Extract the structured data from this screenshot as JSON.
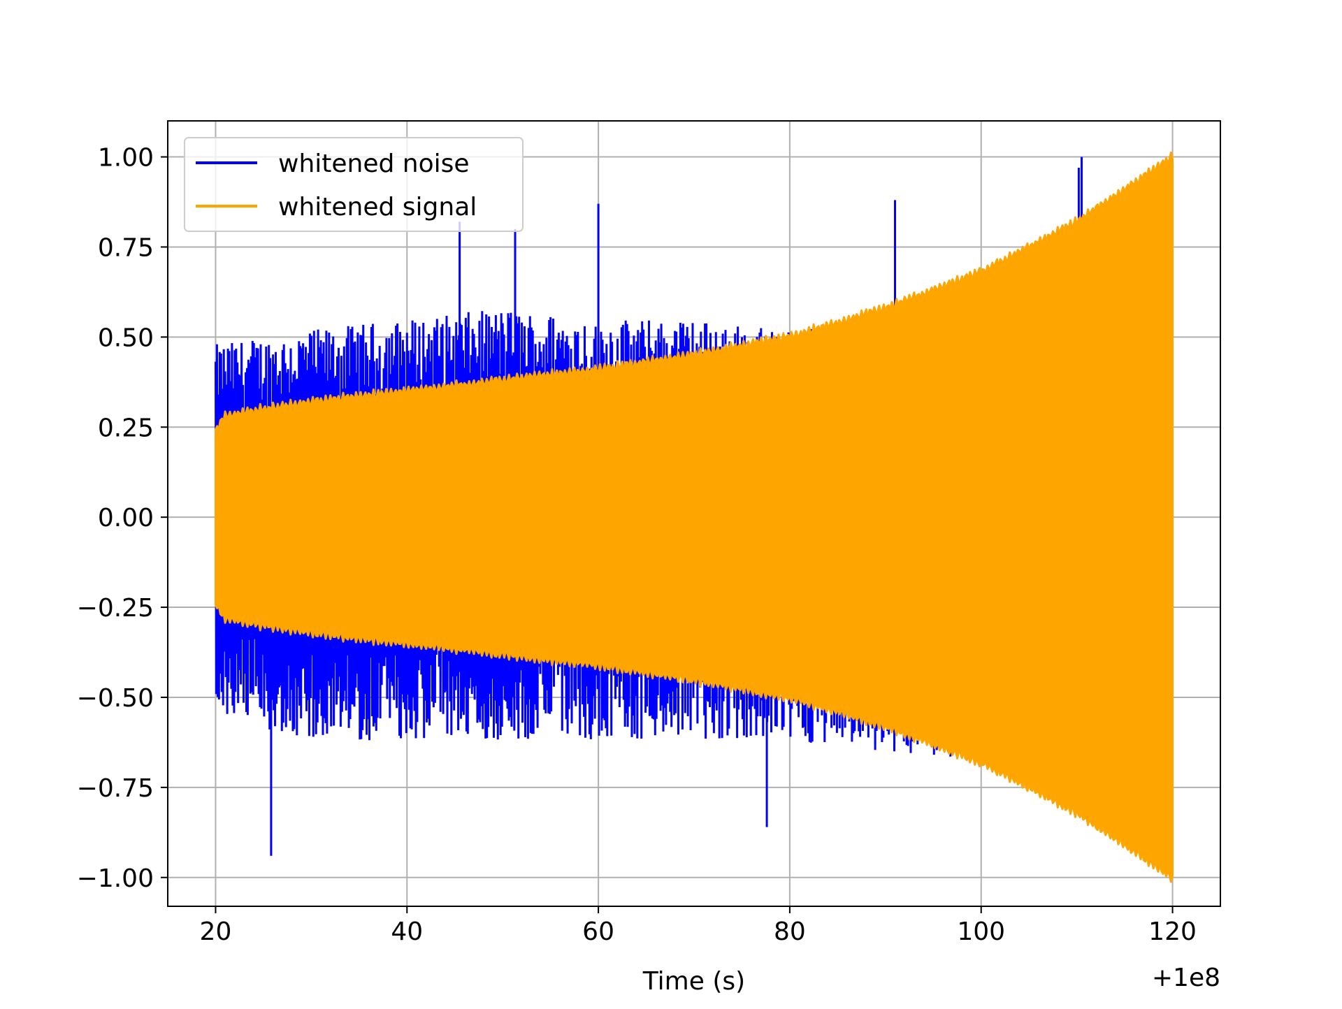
{
  "chart_data": {
    "type": "line",
    "title": "",
    "xlabel": "Time (s)",
    "ylabel": "",
    "x_offset_label": "+1e8",
    "xlim": [
      15,
      125
    ],
    "ylim": [
      -1.08,
      1.1
    ],
    "x_ticks": [
      20,
      40,
      60,
      80,
      100,
      120
    ],
    "x_tick_labels": [
      "20",
      "40",
      "60",
      "80",
      "100",
      "120"
    ],
    "y_ticks": [
      1.0,
      0.75,
      0.5,
      0.25,
      0.0,
      -0.25,
      -0.5,
      -0.75,
      -1.0
    ],
    "y_tick_labels": [
      "1.00",
      "0.75",
      "0.50",
      "0.25",
      "0.00",
      "−0.25",
      "−0.50",
      "−0.75",
      "−1.00"
    ],
    "grid": true,
    "legend_position": "upper-left",
    "series": [
      {
        "name": "whitened noise",
        "color": "#0000ff",
        "x_range": [
          20,
          120
        ],
        "envelope_x": [
          20,
          30,
          40,
          50,
          60,
          70,
          80,
          90,
          100,
          110,
          120
        ],
        "envelope_upper": [
          0.48,
          0.52,
          0.55,
          0.58,
          0.55,
          0.55,
          0.52,
          0.55,
          0.55,
          0.6,
          0.6
        ],
        "envelope_lower": [
          -0.55,
          -0.62,
          -0.62,
          -0.62,
          -0.62,
          -0.62,
          -0.62,
          -0.65,
          -0.68,
          -0.7,
          -0.7
        ],
        "notable_peaks": [
          {
            "x": 25.8,
            "y": -0.94
          },
          {
            "x": 45.5,
            "y": 0.82
          },
          {
            "x": 51.3,
            "y": 0.8
          },
          {
            "x": 60.0,
            "y": 0.87
          },
          {
            "x": 91.0,
            "y": 0.88
          },
          {
            "x": 77.6,
            "y": -0.86
          },
          {
            "x": 110.5,
            "y": 1.0
          },
          {
            "x": 110.2,
            "y": 0.97
          }
        ]
      },
      {
        "name": "whitened signal",
        "color": "#ffa500",
        "x_range": [
          20,
          120
        ],
        "envelope_x": [
          20,
          21,
          25,
          30,
          40,
          50,
          60,
          70,
          80,
          90,
          100,
          110,
          120
        ],
        "envelope_amplitude": [
          0.24,
          0.28,
          0.3,
          0.32,
          0.35,
          0.38,
          0.41,
          0.45,
          0.5,
          0.58,
          0.68,
          0.82,
          1.0
        ]
      }
    ]
  }
}
